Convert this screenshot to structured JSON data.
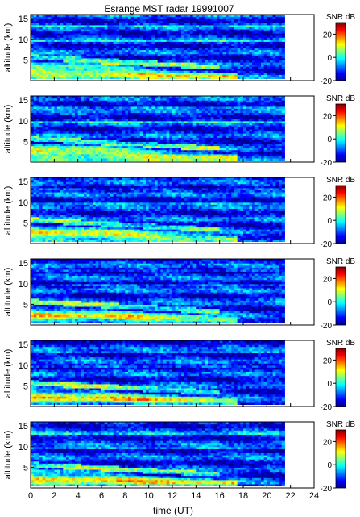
{
  "chart_data": {
    "type": "heatmap",
    "title": "Esrange MST radar 19991007",
    "xlabel": "time (UT)",
    "ylabel": "altitude (km)",
    "xlim": [
      0,
      24
    ],
    "ylim": [
      0,
      16
    ],
    "x_ticks": [
      0,
      2,
      4,
      6,
      8,
      10,
      12,
      14,
      16,
      18,
      20,
      22,
      24
    ],
    "y_ticks": [
      5,
      10,
      15
    ],
    "data_end_time": 21.5,
    "colorbar": {
      "label": "SNR dB",
      "range": [
        -20,
        30
      ],
      "ticks": [
        -20,
        0,
        20
      ],
      "colormap": [
        "#00008f",
        "#0000ff",
        "#00ffff",
        "#ffff00",
        "#ff0000",
        "#800000"
      ]
    },
    "panel_count": 6,
    "z_summary": "SNR highest (about 20-30 dB) in a layer near 1-4 km altitude between roughly 0 and 17 UT, descending toward later times; banded structure of moderate SNR up to ~15 km; background near -10 to 0 dB above 10 km."
  }
}
